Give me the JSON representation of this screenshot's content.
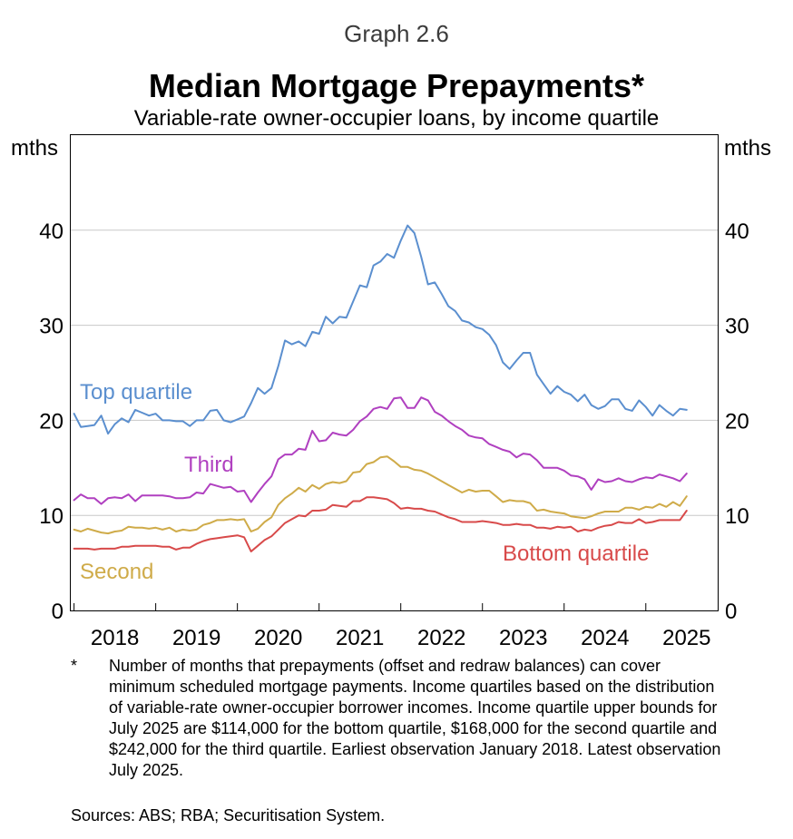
{
  "graph_label": "Graph 2.6",
  "footnote": {
    "marker": "*",
    "text": "Number of months that prepayments (offset and redraw balances) can cover minimum scheduled mortgage payments. Income quartiles based on the distribution of variable-rate owner-occupier borrower incomes. Income quartile upper bounds for July 2025 are $114,000 for the bottom quartile, $168,000 for the second quartile and $242,000 for the third quartile. Earliest observation January 2018. Latest observation July 2025."
  },
  "sources": "Sources: ABS; RBA; Securitisation System.",
  "chart_data": {
    "type": "line",
    "title": "Median Mortgage Prepayments*",
    "subtitle": "Variable-rate owner-occupier loans, by income quartile",
    "xlabel": "",
    "ylabel": "mths",
    "ylabel_right": "mths",
    "ylim": [
      0,
      50
    ],
    "yticks": [
      0,
      10,
      20,
      30,
      40
    ],
    "xlim": [
      2017.96,
      2025.88
    ],
    "xtick_labels": [
      "2018",
      "2019",
      "2020",
      "2021",
      "2022",
      "2023",
      "2024",
      "2025"
    ],
    "grid": true,
    "series": [
      {
        "name": "Top quartile",
        "color": "#5b8fcf",
        "x": [
          2018.0,
          2018.083,
          2018.167,
          2018.25,
          2018.333,
          2018.417,
          2018.5,
          2018.583,
          2018.667,
          2018.75,
          2018.833,
          2018.917,
          2019.0,
          2019.083,
          2019.167,
          2019.25,
          2019.333,
          2019.417,
          2019.5,
          2019.583,
          2019.667,
          2019.75,
          2019.833,
          2019.917,
          2020.0,
          2020.083,
          2020.167,
          2020.25,
          2020.333,
          2020.417,
          2020.5,
          2020.583,
          2020.667,
          2020.75,
          2020.833,
          2020.917,
          2021.0,
          2021.083,
          2021.167,
          2021.25,
          2021.333,
          2021.417,
          2021.5,
          2021.583,
          2021.667,
          2021.75,
          2021.833,
          2021.917,
          2022.0,
          2022.083,
          2022.167,
          2022.25,
          2022.333,
          2022.417,
          2022.5,
          2022.583,
          2022.667,
          2022.75,
          2022.833,
          2022.917,
          2023.0,
          2023.083,
          2023.167,
          2023.25,
          2023.333,
          2023.417,
          2023.5,
          2023.583,
          2023.667,
          2023.75,
          2023.833,
          2023.917,
          2024.0,
          2024.083,
          2024.167,
          2024.25,
          2024.333,
          2024.417,
          2024.5,
          2024.583,
          2024.667,
          2024.75,
          2024.833,
          2024.917,
          2025.0,
          2025.083,
          2025.167,
          2025.25,
          2025.333,
          2025.417,
          2025.5
        ],
        "values": [
          20.7,
          19.3,
          19.4,
          19.5,
          20.5,
          18.6,
          19.6,
          20.2,
          19.8,
          21.1,
          20.8,
          20.5,
          20.7,
          20.0,
          20.0,
          19.9,
          19.9,
          19.4,
          20.0,
          20.0,
          21.0,
          21.1,
          20.0,
          19.8,
          20.1,
          20.4,
          21.8,
          23.4,
          22.8,
          23.4,
          25.7,
          28.4,
          28.0,
          28.3,
          27.8,
          29.3,
          29.1,
          30.9,
          30.2,
          30.9,
          30.8,
          32.5,
          34.2,
          34.0,
          36.3,
          36.7,
          37.5,
          37.1,
          38.9,
          40.5,
          39.7,
          37.2,
          34.3,
          34.5,
          33.3,
          32.0,
          31.5,
          30.5,
          30.3,
          29.8,
          29.6,
          29.0,
          27.9,
          26.1,
          25.4,
          26.3,
          27.1,
          27.1,
          24.8,
          23.8,
          22.8,
          23.6,
          23.0,
          22.7,
          22.0,
          22.7,
          21.6,
          21.2,
          21.5,
          22.2,
          22.2,
          21.2,
          21.0,
          22.1,
          21.4,
          20.5,
          21.6,
          21.0,
          20.5,
          21.2,
          21.1
        ]
      },
      {
        "name": "Third",
        "color": "#b040c0",
        "x": [
          2018.0,
          2018.083,
          2018.167,
          2018.25,
          2018.333,
          2018.417,
          2018.5,
          2018.583,
          2018.667,
          2018.75,
          2018.833,
          2018.917,
          2019.0,
          2019.083,
          2019.167,
          2019.25,
          2019.333,
          2019.417,
          2019.5,
          2019.583,
          2019.667,
          2019.75,
          2019.833,
          2019.917,
          2020.0,
          2020.083,
          2020.167,
          2020.25,
          2020.333,
          2020.417,
          2020.5,
          2020.583,
          2020.667,
          2020.75,
          2020.833,
          2020.917,
          2021.0,
          2021.083,
          2021.167,
          2021.25,
          2021.333,
          2021.417,
          2021.5,
          2021.583,
          2021.667,
          2021.75,
          2021.833,
          2021.917,
          2022.0,
          2022.083,
          2022.167,
          2022.25,
          2022.333,
          2022.417,
          2022.5,
          2022.583,
          2022.667,
          2022.75,
          2022.833,
          2022.917,
          2023.0,
          2023.083,
          2023.167,
          2023.25,
          2023.333,
          2023.417,
          2023.5,
          2023.583,
          2023.667,
          2023.75,
          2023.833,
          2023.917,
          2024.0,
          2024.083,
          2024.167,
          2024.25,
          2024.333,
          2024.417,
          2024.5,
          2024.583,
          2024.667,
          2024.75,
          2024.833,
          2024.917,
          2025.0,
          2025.083,
          2025.167,
          2025.25,
          2025.333,
          2025.417,
          2025.5
        ],
        "values": [
          11.6,
          12.2,
          11.8,
          11.8,
          11.2,
          11.8,
          11.9,
          11.8,
          12.2,
          11.5,
          12.1,
          12.1,
          12.1,
          12.1,
          12.0,
          11.8,
          11.8,
          11.9,
          12.4,
          12.3,
          13.3,
          13.1,
          12.9,
          13.0,
          12.5,
          12.6,
          11.4,
          12.4,
          13.3,
          14.1,
          15.9,
          16.4,
          16.4,
          17.0,
          16.9,
          18.9,
          17.8,
          17.9,
          18.7,
          18.5,
          18.4,
          19.0,
          19.9,
          20.4,
          21.2,
          21.4,
          21.2,
          22.3,
          22.4,
          21.3,
          21.3,
          22.4,
          22.1,
          20.9,
          20.5,
          19.9,
          19.4,
          19.0,
          18.4,
          18.2,
          18.1,
          17.5,
          17.2,
          16.9,
          16.7,
          16.1,
          16.5,
          16.4,
          15.8,
          15.0,
          15.0,
          15.0,
          14.7,
          14.2,
          14.1,
          13.8,
          12.7,
          13.8,
          13.5,
          13.6,
          13.9,
          13.6,
          13.5,
          13.8,
          14.0,
          13.9,
          14.3,
          14.1,
          13.9,
          13.6,
          14.4
        ]
      },
      {
        "name": "Second",
        "color": "#cfab49",
        "x": [
          2018.0,
          2018.083,
          2018.167,
          2018.25,
          2018.333,
          2018.417,
          2018.5,
          2018.583,
          2018.667,
          2018.75,
          2018.833,
          2018.917,
          2019.0,
          2019.083,
          2019.167,
          2019.25,
          2019.333,
          2019.417,
          2019.5,
          2019.583,
          2019.667,
          2019.75,
          2019.833,
          2019.917,
          2020.0,
          2020.083,
          2020.167,
          2020.25,
          2020.333,
          2020.417,
          2020.5,
          2020.583,
          2020.667,
          2020.75,
          2020.833,
          2020.917,
          2021.0,
          2021.083,
          2021.167,
          2021.25,
          2021.333,
          2021.417,
          2021.5,
          2021.583,
          2021.667,
          2021.75,
          2021.833,
          2021.917,
          2022.0,
          2022.083,
          2022.167,
          2022.25,
          2022.333,
          2022.417,
          2022.5,
          2022.583,
          2022.667,
          2022.75,
          2022.833,
          2022.917,
          2023.0,
          2023.083,
          2023.167,
          2023.25,
          2023.333,
          2023.417,
          2023.5,
          2023.583,
          2023.667,
          2023.75,
          2023.833,
          2023.917,
          2024.0,
          2024.083,
          2024.167,
          2024.25,
          2024.333,
          2024.417,
          2024.5,
          2024.583,
          2024.667,
          2024.75,
          2024.833,
          2024.917,
          2025.0,
          2025.083,
          2025.167,
          2025.25,
          2025.333,
          2025.417,
          2025.5
        ],
        "values": [
          8.5,
          8.3,
          8.6,
          8.4,
          8.2,
          8.1,
          8.3,
          8.4,
          8.8,
          8.7,
          8.7,
          8.6,
          8.7,
          8.5,
          8.7,
          8.3,
          8.5,
          8.4,
          8.5,
          9.0,
          9.2,
          9.5,
          9.5,
          9.6,
          9.5,
          9.6,
          8.3,
          8.6,
          9.3,
          9.8,
          11.1,
          11.8,
          12.3,
          12.9,
          12.5,
          13.2,
          12.8,
          13.3,
          13.5,
          13.4,
          13.6,
          14.5,
          14.6,
          15.4,
          15.6,
          16.1,
          16.2,
          15.7,
          15.1,
          15.1,
          14.8,
          14.7,
          14.4,
          14.0,
          13.6,
          13.2,
          12.8,
          12.4,
          12.7,
          12.5,
          12.6,
          12.6,
          12.0,
          11.4,
          11.6,
          11.5,
          11.5,
          11.3,
          10.5,
          10.6,
          10.4,
          10.3,
          10.2,
          9.9,
          9.8,
          9.7,
          9.9,
          10.2,
          10.4,
          10.4,
          10.4,
          10.8,
          10.8,
          10.6,
          10.9,
          10.8,
          11.2,
          10.9,
          11.4,
          11.0,
          12.0
        ]
      },
      {
        "name": "Bottom quartile",
        "color": "#d84a4a",
        "x": [
          2018.0,
          2018.083,
          2018.167,
          2018.25,
          2018.333,
          2018.417,
          2018.5,
          2018.583,
          2018.667,
          2018.75,
          2018.833,
          2018.917,
          2019.0,
          2019.083,
          2019.167,
          2019.25,
          2019.333,
          2019.417,
          2019.5,
          2019.583,
          2019.667,
          2019.75,
          2019.833,
          2019.917,
          2020.0,
          2020.083,
          2020.167,
          2020.25,
          2020.333,
          2020.417,
          2020.5,
          2020.583,
          2020.667,
          2020.75,
          2020.833,
          2020.917,
          2021.0,
          2021.083,
          2021.167,
          2021.25,
          2021.333,
          2021.417,
          2021.5,
          2021.583,
          2021.667,
          2021.75,
          2021.833,
          2021.917,
          2022.0,
          2022.083,
          2022.167,
          2022.25,
          2022.333,
          2022.417,
          2022.5,
          2022.583,
          2022.667,
          2022.75,
          2022.833,
          2022.917,
          2023.0,
          2023.083,
          2023.167,
          2023.25,
          2023.333,
          2023.417,
          2023.5,
          2023.583,
          2023.667,
          2023.75,
          2023.833,
          2023.917,
          2024.0,
          2024.083,
          2024.167,
          2024.25,
          2024.333,
          2024.417,
          2024.5,
          2024.583,
          2024.667,
          2024.75,
          2024.833,
          2024.917,
          2025.0,
          2025.083,
          2025.167,
          2025.25,
          2025.333,
          2025.417,
          2025.5
        ],
        "values": [
          6.5,
          6.5,
          6.5,
          6.4,
          6.5,
          6.5,
          6.5,
          6.7,
          6.7,
          6.8,
          6.8,
          6.8,
          6.8,
          6.7,
          6.7,
          6.4,
          6.6,
          6.6,
          7.0,
          7.3,
          7.5,
          7.6,
          7.7,
          7.8,
          7.9,
          7.7,
          6.2,
          6.8,
          7.4,
          7.8,
          8.5,
          9.2,
          9.6,
          10.0,
          9.9,
          10.5,
          10.5,
          10.6,
          11.1,
          11.0,
          10.9,
          11.5,
          11.5,
          11.9,
          11.9,
          11.8,
          11.7,
          11.3,
          10.7,
          10.8,
          10.7,
          10.7,
          10.5,
          10.4,
          10.1,
          9.8,
          9.6,
          9.3,
          9.3,
          9.3,
          9.4,
          9.3,
          9.2,
          9.0,
          9.0,
          9.1,
          9.0,
          9.0,
          8.7,
          8.7,
          8.6,
          8.8,
          8.7,
          8.8,
          8.3,
          8.5,
          8.4,
          8.7,
          8.9,
          9.0,
          9.3,
          9.2,
          9.2,
          9.6,
          9.2,
          9.3,
          9.5,
          9.5,
          9.5,
          9.5,
          10.5
        ]
      }
    ]
  }
}
